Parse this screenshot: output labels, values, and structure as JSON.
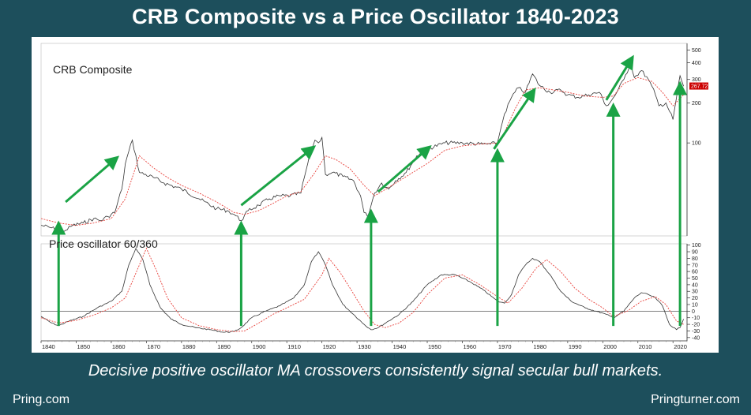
{
  "title": "CRB Composite vs a Price Oscillator 1840-2023",
  "caption": "Decisive positive oscillator MA crossovers consistently signal secular bull markets.",
  "footer": {
    "left": "Pring.com",
    "right": "Pringturner.com"
  },
  "colors": {
    "background": "#1d4f5c",
    "price_line": "#333333",
    "moving_average": "#e8403a",
    "arrow": "#1aa345",
    "price_tag": "#cc0000"
  },
  "chart_data": [
    {
      "type": "line",
      "title": "CRB Composite",
      "scale": "log",
      "ylim": [
        20,
        560
      ],
      "xlim": [
        1840,
        2024
      ],
      "yticks": [
        100,
        200,
        300,
        400,
        500
      ],
      "last_value_label": "267.72",
      "last_value": 267.72,
      "series": [
        {
          "role": "price",
          "x": [
            1840,
            1843,
            1845,
            1847,
            1849,
            1852,
            1855,
            1857,
            1859,
            1861,
            1863,
            1864,
            1866,
            1868,
            1872,
            1875,
            1880,
            1885,
            1890,
            1893,
            1895,
            1897,
            1899,
            1902,
            1905,
            1908,
            1911,
            1914,
            1915,
            1917,
            1918,
            1919,
            1920,
            1921,
            1923,
            1926,
            1929,
            1931,
            1932,
            1933,
            1935,
            1937,
            1939,
            1941,
            1944,
            1947,
            1950,
            1955,
            1960,
            1965,
            1968,
            1970,
            1971,
            1972,
            1974,
            1976,
            1978,
            1980,
            1982,
            1985,
            1988,
            1990,
            1993,
            1996,
            1999,
            2001,
            2002,
            2004,
            2006,
            2008,
            2009,
            2011,
            2013,
            2015,
            2016,
            2018,
            2020,
            2021,
            2022,
            2023
          ],
          "y": [
            24,
            23,
            22,
            22,
            24,
            25,
            27,
            26,
            28,
            30,
            45,
            70,
            105,
            60,
            55,
            50,
            45,
            38,
            32,
            31,
            29,
            26,
            31,
            34,
            38,
            40,
            40,
            42,
            55,
            90,
            105,
            100,
            110,
            58,
            60,
            56,
            52,
            40,
            30,
            28,
            42,
            50,
            45,
            52,
            60,
            80,
            90,
            100,
            100,
            98,
            98,
            100,
            130,
            165,
            220,
            260,
            240,
            330,
            270,
            240,
            250,
            230,
            220,
            230,
            240,
            190,
            200,
            240,
            300,
            400,
            310,
            350,
            300,
            230,
            190,
            200,
            150,
            220,
            320,
            267
          ]
        },
        {
          "role": "moving-average",
          "x": [
            1840,
            1845,
            1850,
            1855,
            1860,
            1864,
            1868,
            1872,
            1876,
            1880,
            1885,
            1890,
            1895,
            1898,
            1902,
            1906,
            1910,
            1914,
            1918,
            1921,
            1924,
            1928,
            1932,
            1935,
            1940,
            1945,
            1950,
            1955,
            1960,
            1965,
            1970,
            1972,
            1975,
            1978,
            1982,
            1986,
            1990,
            1995,
            2000,
            2003,
            2006,
            2010,
            2014,
            2017,
            2020,
            2023
          ],
          "y": [
            27,
            25,
            24,
            25,
            27,
            38,
            80,
            65,
            55,
            48,
            42,
            36,
            30,
            29,
            31,
            35,
            40,
            43,
            60,
            80,
            75,
            64,
            48,
            40,
            48,
            58,
            70,
            88,
            95,
            98,
            100,
            120,
            180,
            250,
            260,
            250,
            240,
            225,
            220,
            225,
            280,
            310,
            290,
            240,
            190,
            230
          ]
        }
      ]
    },
    {
      "type": "line",
      "title": "Price oscillator 60/360",
      "ylim": [
        -45,
        102
      ],
      "xlim": [
        1840,
        2024
      ],
      "yticks": [
        100,
        90,
        80,
        70,
        60,
        50,
        40,
        30,
        20,
        10,
        0,
        -10,
        -20,
        -30,
        -40
      ],
      "xticks": [
        1840,
        1850,
        1860,
        1870,
        1880,
        1890,
        1900,
        1910,
        1920,
        1930,
        1940,
        1950,
        1960,
        1970,
        1980,
        1990,
        2000,
        2010,
        2020
      ],
      "zero_line": true,
      "series": [
        {
          "role": "oscillator",
          "x": [
            1840,
            1843,
            1845,
            1848,
            1852,
            1856,
            1860,
            1863,
            1865,
            1867,
            1869,
            1871,
            1874,
            1877,
            1880,
            1884,
            1888,
            1892,
            1895,
            1897,
            1900,
            1904,
            1908,
            1912,
            1915,
            1917,
            1919,
            1921,
            1923,
            1926,
            1929,
            1932,
            1934,
            1936,
            1939,
            1942,
            1946,
            1950,
            1954,
            1958,
            1962,
            1966,
            1970,
            1972,
            1974,
            1976,
            1978,
            1980,
            1982,
            1985,
            1988,
            1991,
            1995,
            1998,
            2001,
            2003,
            2006,
            2009,
            2011,
            2013,
            2015,
            2017,
            2019,
            2021,
            2022,
            2023
          ],
          "y": [
            -8,
            -18,
            -22,
            -15,
            -8,
            5,
            15,
            30,
            70,
            95,
            78,
            40,
            5,
            -12,
            -20,
            -25,
            -28,
            -32,
            -31,
            -25,
            -10,
            0,
            8,
            20,
            40,
            75,
            90,
            70,
            40,
            10,
            -5,
            -20,
            -28,
            -25,
            -15,
            -5,
            15,
            40,
            55,
            55,
            45,
            32,
            15,
            12,
            25,
            55,
            70,
            80,
            75,
            55,
            30,
            15,
            5,
            0,
            -5,
            -10,
            0,
            20,
            28,
            25,
            20,
            8,
            -20,
            -28,
            -25,
            -12
          ]
        },
        {
          "role": "moving-average",
          "x": [
            1840,
            1845,
            1850,
            1855,
            1860,
            1864,
            1868,
            1870,
            1873,
            1876,
            1880,
            1885,
            1890,
            1895,
            1898,
            1902,
            1906,
            1910,
            1915,
            1920,
            1922,
            1925,
            1928,
            1932,
            1935,
            1938,
            1942,
            1946,
            1950,
            1955,
            1960,
            1965,
            1970,
            1973,
            1977,
            1981,
            1984,
            1988,
            1992,
            1996,
            2000,
            2003,
            2007,
            2011,
            2015,
            2018,
            2021,
            2023
          ],
          "y": [
            -10,
            -18,
            -14,
            -6,
            5,
            20,
            70,
            95,
            60,
            20,
            -10,
            -22,
            -28,
            -31,
            -30,
            -18,
            -5,
            5,
            18,
            55,
            80,
            60,
            35,
            0,
            -20,
            -25,
            -18,
            -2,
            25,
            50,
            55,
            40,
            22,
            12,
            35,
            65,
            78,
            60,
            35,
            18,
            5,
            -8,
            0,
            15,
            22,
            10,
            -15,
            -20
          ]
        }
      ]
    }
  ],
  "panel_labels": {
    "price": "CRB Composite",
    "oscillator": "Price oscillator 60/360"
  },
  "signal_arrows": [
    {
      "kind": "trend",
      "from": [
        1847,
        36
      ],
      "to": [
        1861,
        75
      ]
    },
    {
      "kind": "trend",
      "from": [
        1897,
        34
      ],
      "to": [
        1917,
        90
      ]
    },
    {
      "kind": "trend",
      "from": [
        1936,
        43
      ],
      "to": [
        1950,
        90
      ]
    },
    {
      "kind": "trend",
      "from": [
        1969,
        90
      ],
      "to": [
        1980,
        240
      ]
    },
    {
      "kind": "trend",
      "from": [
        2001,
        210
      ],
      "to": [
        2008,
        420
      ]
    },
    {
      "kind": "crossover",
      "x": 1845
    },
    {
      "kind": "crossover",
      "x": 1897
    },
    {
      "kind": "crossover",
      "x": 1934
    },
    {
      "kind": "crossover",
      "x": 1970
    },
    {
      "kind": "crossover",
      "x": 2003
    },
    {
      "kind": "crossover",
      "x": 2022
    }
  ]
}
